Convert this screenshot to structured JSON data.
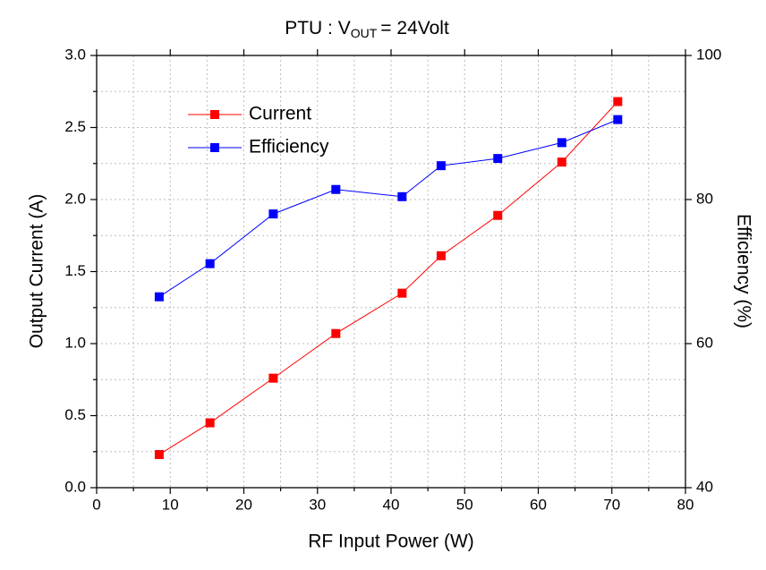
{
  "chart_data": {
    "type": "line",
    "title": [
      "PTU : V",
      "OUT",
      "= 24Volt"
    ],
    "xlabel": "RF Input Power (W)",
    "ylabel": "Output Current (A)",
    "y2label": "Efficiency (%)",
    "x": [
      8.5,
      15.4,
      24.0,
      32.5,
      41.5,
      46.8,
      54.5,
      63.2,
      70.8
    ],
    "series": [
      {
        "name": "Current",
        "color": "#ff0000",
        "values": [
          0.23,
          0.45,
          0.76,
          1.07,
          1.35,
          1.61,
          1.89,
          2.26,
          2.68
        ]
      },
      {
        "name": "Efficiency",
        "color": "#0000ff",
        "axis": "y2",
        "values": [
          66.5,
          71.1,
          78.0,
          81.4,
          80.4,
          84.7,
          85.7,
          87.9,
          91.1
        ]
      }
    ],
    "xlim": [
      0,
      80
    ],
    "xticks": [
      0,
      10,
      20,
      30,
      40,
      50,
      60,
      70,
      80
    ],
    "xminorticks": [
      5,
      15,
      25,
      35,
      45,
      55,
      65,
      75
    ],
    "ylim": [
      0,
      3
    ],
    "yticks": [
      {
        "value": 0,
        "label": "0.0"
      },
      {
        "value": 0.5,
        "label": "0.5"
      },
      {
        "value": 1,
        "label": "1.0"
      },
      {
        "value": 1.5,
        "label": "1.5"
      },
      {
        "value": 2,
        "label": "2.0"
      },
      {
        "value": 2.5,
        "label": "2.5"
      },
      {
        "value": 3,
        "label": "3.0"
      }
    ],
    "yminorticks": [
      0.25,
      0.75,
      1.25,
      1.75,
      2.25,
      2.75
    ],
    "y2lim": [
      40,
      100
    ],
    "y2ticks": [
      40,
      60,
      80,
      100
    ],
    "grid": true,
    "legend": "upper left"
  }
}
